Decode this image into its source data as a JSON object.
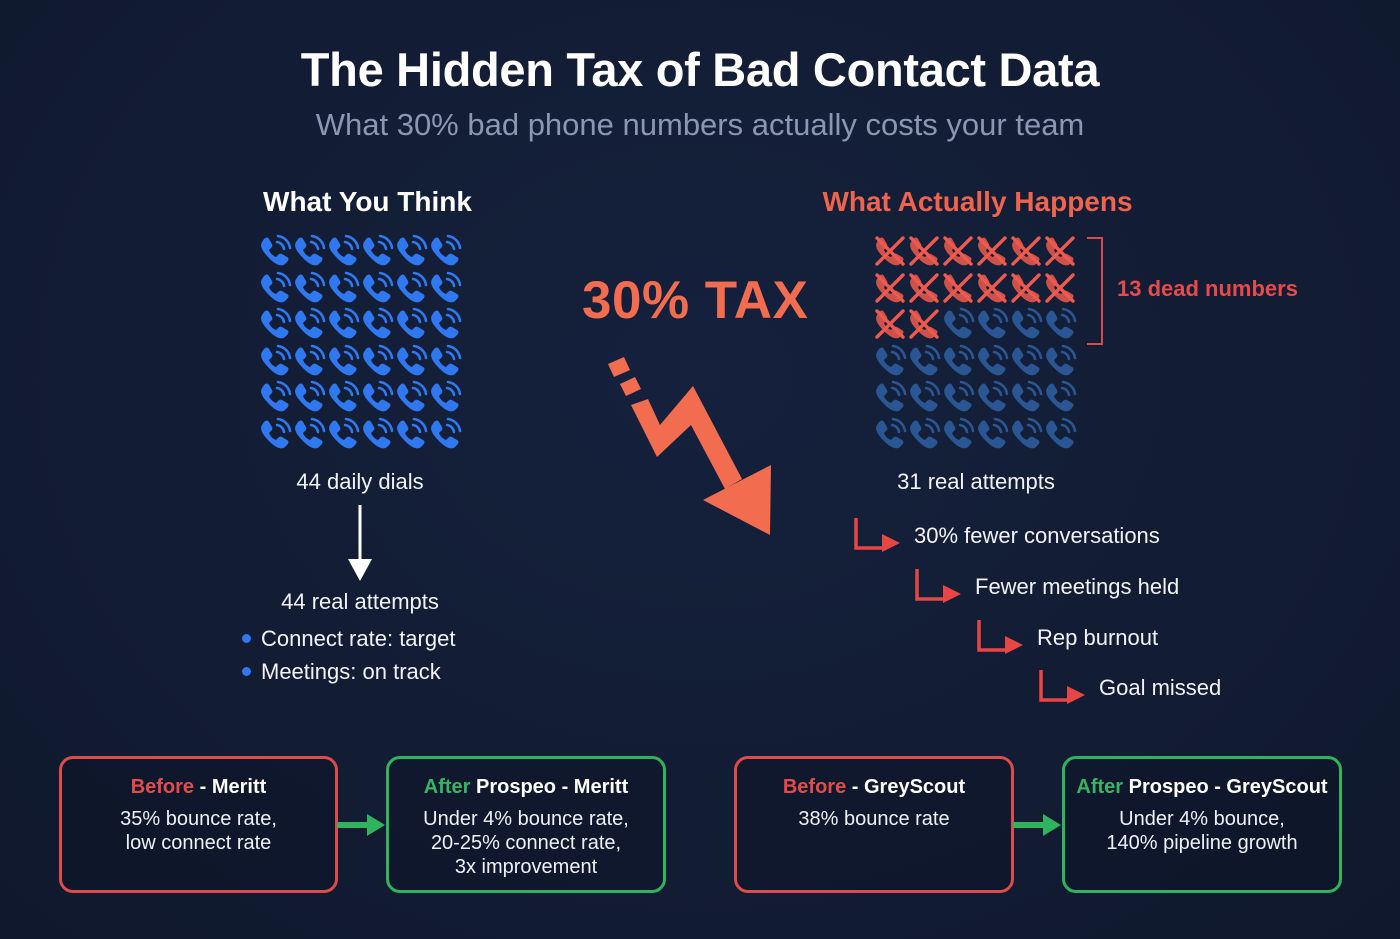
{
  "header": {
    "title": "The Hidden Tax of Bad Contact Data",
    "subtitle": "What 30% bad phone numbers actually costs your team"
  },
  "left_panel": {
    "heading": "What You Think",
    "grid": {
      "rows": 6,
      "cols": 6,
      "icon": "phone-icon",
      "color": "#2f78f0"
    },
    "dials_label": "44 daily dials",
    "result_label": "44 real attempts",
    "bullets": [
      "Connect rate: target",
      "Meetings: on track"
    ],
    "bullet_color": "#2f78f0"
  },
  "center": {
    "tax_label": "30% TAX",
    "tax_color": "#f26d4f",
    "icon": "zigzag-down-arrow-icon"
  },
  "right_panel": {
    "heading": "What Actually Happens",
    "heading_color": "#f0634c",
    "grid": {
      "rows": 6,
      "cols": 6,
      "dead_count": 14,
      "dead_icon": "crossed-phone-icon",
      "live_icon": "phone-icon",
      "dead_color": "#ee5a4e",
      "live_color": "#2a5694"
    },
    "dead_label": "13 dead numbers",
    "attempts_label": "31 real attempts",
    "cascade": [
      "30% fewer conversations",
      "Fewer meetings held",
      "Rep burnout",
      "Goal missed"
    ],
    "cascade_arrow_color": "#e84545"
  },
  "case_studies": [
    {
      "before": {
        "word": "Before",
        "title": " - Meritt",
        "lines": [
          "35% bounce rate,",
          "low connect rate"
        ]
      },
      "after": {
        "word": "After",
        "title": " Prospeo - Meritt",
        "lines": [
          "Under 4% bounce rate,",
          "20-25% connect rate,",
          "3x improvement"
        ]
      }
    },
    {
      "before": {
        "word": "Before",
        "title": " - GreyScout",
        "lines": [
          "38% bounce rate"
        ]
      },
      "after": {
        "word": "After",
        "title": " Prospeo - GreyScout",
        "lines": [
          "Under 4% bounce,",
          "140% pipeline growth"
        ]
      }
    }
  ],
  "colors": {
    "background": "#131d35",
    "before_border": "#dd4b4b",
    "after_border": "#2fb35c"
  }
}
